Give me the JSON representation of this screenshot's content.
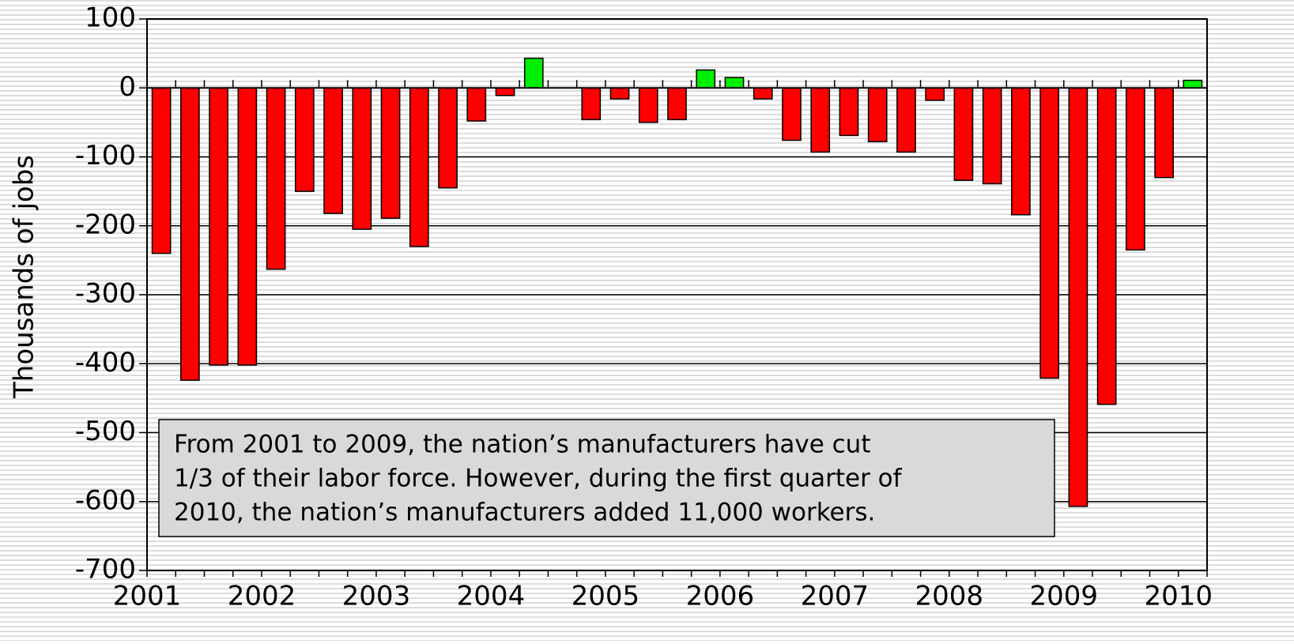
{
  "chart_data": {
    "type": "bar",
    "y_axis_label": "Thousands of jobs",
    "annotation": [
      "From 2001 to 2009, the nation’s manufacturers have cut",
      "1/3 of their labor force.  However, during the first quarter of",
      "2010, the nation’s manufacturers added 11,000 workers."
    ],
    "categories": [
      "2001",
      null,
      null,
      null,
      "2002",
      null,
      null,
      null,
      "2003",
      null,
      null,
      null,
      "2004",
      null,
      null,
      null,
      "2005",
      null,
      null,
      null,
      "2006",
      null,
      null,
      null,
      "2007",
      null,
      null,
      null,
      "2008",
      null,
      null,
      null,
      "2009",
      null,
      null,
      null,
      "2010"
    ],
    "values": [
      -240,
      -424,
      -402,
      -402,
      -263,
      -150,
      -182,
      -205,
      -189,
      -230,
      -145,
      -48,
      -11,
      43,
      0,
      -46,
      -16,
      -50,
      -46,
      26,
      15,
      -16,
      -76,
      -93,
      -69,
      -78,
      -93,
      -18,
      -134,
      -139,
      -184,
      -421,
      -607,
      -459,
      -235,
      -130,
      11
    ],
    "positive_color": "#00ee00",
    "negative_color": "#ff0000",
    "ylim": [
      -700,
      100
    ],
    "yticks": [
      100,
      0,
      -100,
      -200,
      -300,
      -400,
      -500,
      -600,
      -700
    ],
    "grid": true
  }
}
